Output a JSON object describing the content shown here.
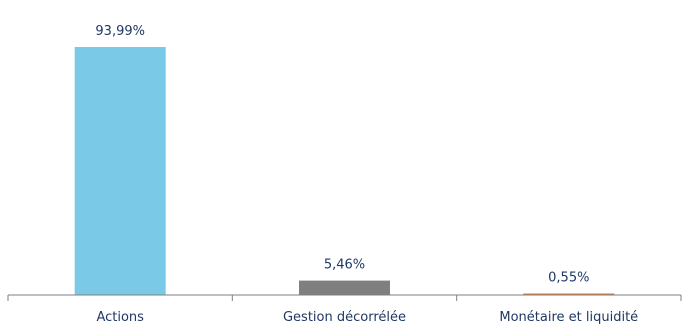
{
  "chart_data": {
    "type": "bar",
    "categories": [
      "Actions",
      "Gestion décorrélée",
      "Monétaire et liquidité"
    ],
    "values": [
      93.99,
      5.46,
      0.55
    ],
    "data_labels": [
      "93,99%",
      "5,46%",
      "0,55%"
    ],
    "colors": [
      "#7ac9e7",
      "#7f7f7f",
      "#e07b39"
    ],
    "axis_color": "#7f7f7f",
    "text_color": "#1f3864",
    "ylim": [
      0,
      100
    ],
    "grid": false,
    "legend": "none",
    "y_axis_visible": false
  }
}
